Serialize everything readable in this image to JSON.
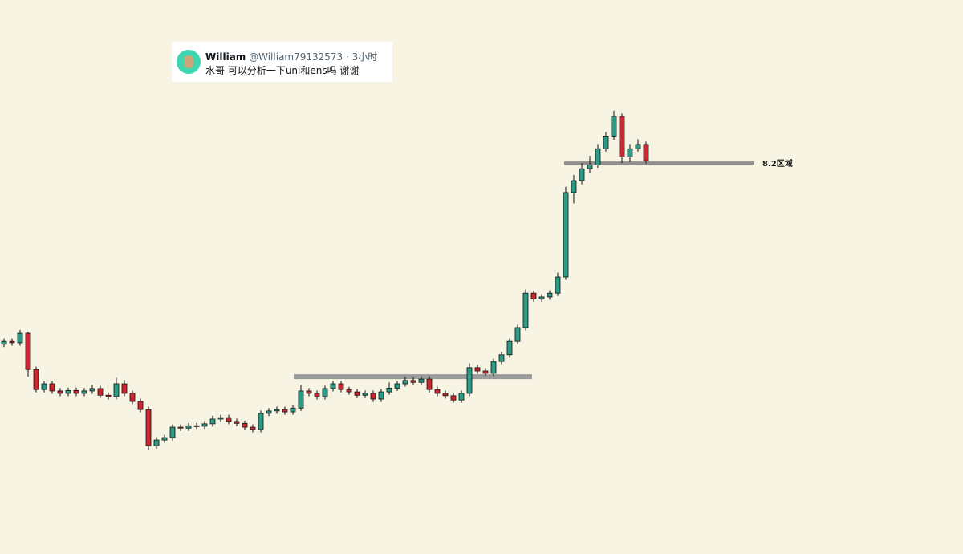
{
  "tweet": {
    "name": "William",
    "handle": "@William79132573",
    "separator": "·",
    "time": "3小时",
    "text": "水哥 可以分析一下uni和ens吗 谢谢"
  },
  "chart_data": {
    "type": "candlestick",
    "ylim": [
      0,
      11.62
    ],
    "up_color": "#2a9c86",
    "down_color": "#cc2630",
    "open": [
      4.4,
      4.46,
      4.43,
      4.63,
      3.87,
      3.45,
      3.57,
      3.42,
      3.37,
      3.43,
      3.37,
      3.42,
      3.47,
      3.33,
      3.3,
      3.57,
      3.37,
      3.2,
      3.03,
      2.27,
      2.39,
      2.44,
      2.66,
      2.64,
      2.69,
      2.68,
      2.73,
      2.83,
      2.86,
      2.78,
      2.74,
      2.66,
      2.61,
      2.95,
      3.0,
      3.03,
      2.98,
      3.06,
      3.42,
      3.37,
      3.3,
      3.47,
      3.57,
      3.45,
      3.4,
      3.33,
      3.37,
      3.25,
      3.4,
      3.48,
      3.57,
      3.64,
      3.6,
      3.67,
      3.45,
      3.37,
      3.32,
      3.23,
      3.37,
      3.91,
      3.84,
      3.79,
      4.04,
      4.18,
      4.46,
      4.75,
      5.47,
      5.35,
      5.39,
      5.47,
      5.81,
      7.58,
      7.83,
      8.08,
      8.16,
      8.5,
      8.75,
      9.18,
      8.33,
      8.5,
      8.59
    ],
    "high": [
      4.52,
      4.52,
      4.7,
      4.66,
      3.93,
      3.63,
      3.63,
      3.48,
      3.49,
      3.49,
      3.48,
      3.55,
      3.53,
      3.39,
      3.7,
      3.65,
      3.43,
      3.26,
      3.09,
      2.45,
      2.5,
      2.72,
      2.72,
      2.75,
      2.75,
      2.79,
      2.9,
      2.92,
      2.92,
      2.84,
      2.8,
      2.72,
      3.01,
      3.06,
      3.09,
      3.09,
      3.12,
      3.55,
      3.48,
      3.43,
      3.53,
      3.63,
      3.63,
      3.51,
      3.46,
      3.43,
      3.43,
      3.46,
      3.6,
      3.63,
      3.72,
      3.7,
      3.73,
      3.73,
      3.51,
      3.43,
      3.38,
      3.43,
      4.0,
      3.97,
      3.9,
      4.1,
      4.24,
      4.52,
      4.81,
      5.55,
      5.53,
      5.45,
      5.53,
      5.9,
      7.7,
      7.95,
      8.2,
      8.35,
      8.6,
      8.85,
      9.3,
      9.24,
      8.6,
      8.7,
      8.65
    ],
    "low": [
      4.34,
      4.37,
      4.37,
      3.72,
      3.39,
      3.39,
      3.36,
      3.31,
      3.31,
      3.31,
      3.31,
      3.36,
      3.27,
      3.24,
      3.24,
      3.31,
      3.14,
      2.97,
      2.19,
      2.21,
      2.33,
      2.38,
      2.58,
      2.58,
      2.62,
      2.62,
      2.67,
      2.77,
      2.72,
      2.68,
      2.6,
      2.55,
      2.55,
      2.89,
      2.94,
      2.92,
      2.92,
      3.0,
      3.31,
      3.24,
      3.24,
      3.41,
      3.39,
      3.34,
      3.27,
      3.27,
      3.19,
      3.19,
      3.34,
      3.42,
      3.51,
      3.54,
      3.54,
      3.39,
      3.31,
      3.26,
      3.17,
      3.17,
      3.31,
      3.78,
      3.73,
      3.73,
      3.98,
      4.12,
      4.4,
      4.69,
      5.29,
      5.29,
      5.33,
      5.41,
      5.75,
      7.35,
      7.75,
      8.0,
      8.1,
      8.44,
      8.69,
      8.2,
      8.22,
      8.44,
      8.19
    ],
    "close": [
      4.46,
      4.43,
      4.63,
      3.87,
      3.45,
      3.57,
      3.42,
      3.37,
      3.43,
      3.37,
      3.42,
      3.47,
      3.33,
      3.3,
      3.57,
      3.37,
      3.2,
      3.03,
      2.27,
      2.39,
      2.44,
      2.66,
      2.64,
      2.69,
      2.68,
      2.73,
      2.83,
      2.86,
      2.78,
      2.74,
      2.66,
      2.61,
      2.95,
      3.0,
      3.03,
      2.98,
      3.06,
      3.42,
      3.37,
      3.3,
      3.47,
      3.57,
      3.45,
      3.4,
      3.33,
      3.37,
      3.25,
      3.4,
      3.48,
      3.57,
      3.64,
      3.6,
      3.67,
      3.45,
      3.37,
      3.32,
      3.23,
      3.37,
      3.91,
      3.84,
      3.79,
      4.04,
      4.18,
      4.46,
      4.75,
      5.47,
      5.35,
      5.39,
      5.47,
      5.81,
      7.58,
      7.83,
      8.08,
      8.16,
      8.5,
      8.75,
      9.18,
      8.33,
      8.5,
      8.59,
      8.25
    ],
    "levels": [
      {
        "value": 8.2,
        "label": "8.2区域",
        "color": "#8f8f8f"
      },
      {
        "value": 3.72,
        "color": "#9a9a9a"
      }
    ]
  }
}
